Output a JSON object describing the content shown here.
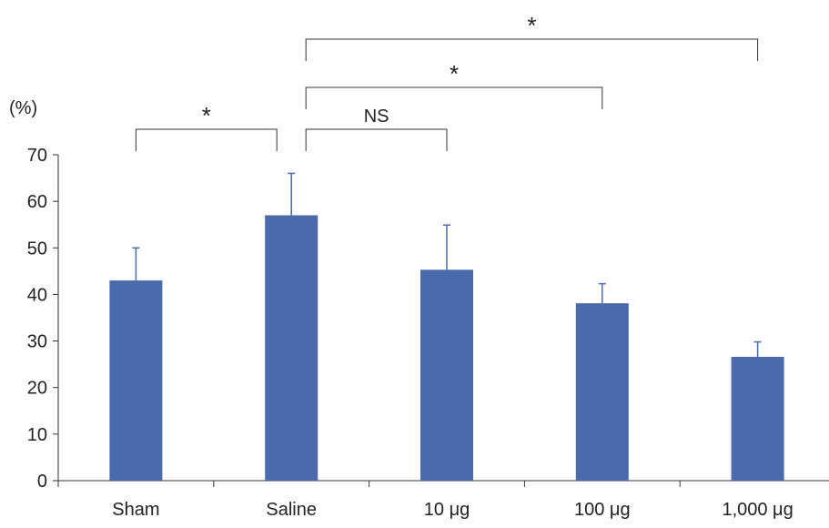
{
  "chart_data": {
    "type": "bar",
    "categories": [
      "Sham",
      "Saline",
      "10 μg",
      "100 μg",
      "1,000 μg"
    ],
    "series": [
      {
        "values": [
          43,
          57,
          45.3,
          38.1,
          26.6
        ],
        "error_upper": [
          7,
          9,
          9.6,
          4.2,
          3.2
        ]
      }
    ],
    "ylabel": "(%)",
    "ylim": [
      0,
      70
    ],
    "yticks": [
      0,
      10,
      20,
      30,
      40,
      50,
      60,
      70
    ],
    "grid": false,
    "colors": {
      "bar": "#4a6aab",
      "errorbar": "#4a6aab",
      "axis": "#333333",
      "bracket": "#333333"
    },
    "annotations": [
      {
        "from": "Sham",
        "to": "Saline",
        "label": "*"
      },
      {
        "from": "Saline",
        "to": "10 μg",
        "label": "NS"
      },
      {
        "from": "Saline",
        "to": "100 μg",
        "label": "*"
      },
      {
        "from": "Saline",
        "to": "1,000 μg",
        "label": "*"
      }
    ]
  }
}
